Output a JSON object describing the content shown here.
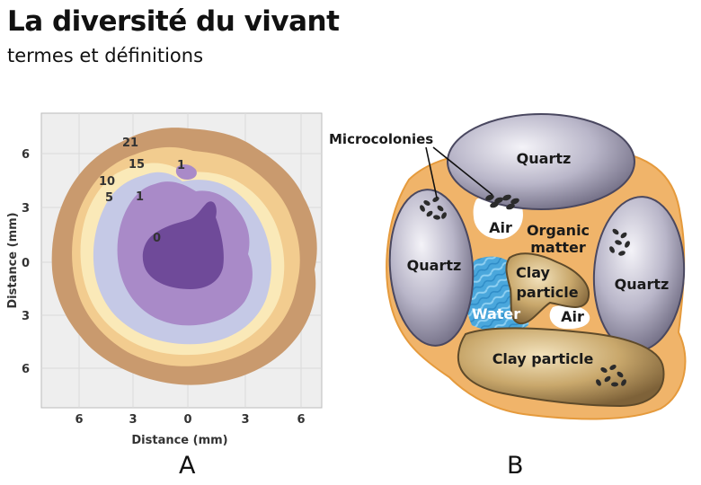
{
  "header": {
    "title": "La diversité du vivant",
    "subtitle": "termes et définitions"
  },
  "panel_a": {
    "label": "A",
    "x_axis_title": "Distance (mm)",
    "y_axis_title": "Distance (mm)",
    "x_ticks": [
      "6",
      "3",
      "0",
      "3",
      "6"
    ],
    "y_ticks": [
      "6",
      "3",
      "0",
      "3",
      "6"
    ],
    "contour_labels": [
      "21",
      "15",
      "10",
      "5",
      "1",
      "1",
      "0"
    ],
    "colors": {
      "level_21": "#c99a6e",
      "level_15": "#f2cc8f",
      "level_10": "#fae9b8",
      "level_5": "#c5c9e6",
      "level_1": "#a98ac8",
      "level_0": "#6f4a99",
      "background": "#eeeeee",
      "grid": "#d9d9d9"
    }
  },
  "panel_b": {
    "label": "B",
    "callout": "Microcolonies",
    "labels": {
      "quartz_top": "Quartz",
      "quartz_left": "Quartz",
      "quartz_right": "Quartz",
      "air_top": "Air",
      "organic_line1": "Organic",
      "organic_line2": "matter",
      "clay_line1": "Clay",
      "clay_line2": "particle",
      "water": "Water",
      "air_bottom": "Air",
      "clay_bottom": "Clay particle"
    },
    "colors": {
      "organic": "#f0b46a",
      "quartz": "#b9b6c9",
      "clay": "#c9a86c",
      "water": "#4aa7dc",
      "air": "#ffffff"
    }
  }
}
